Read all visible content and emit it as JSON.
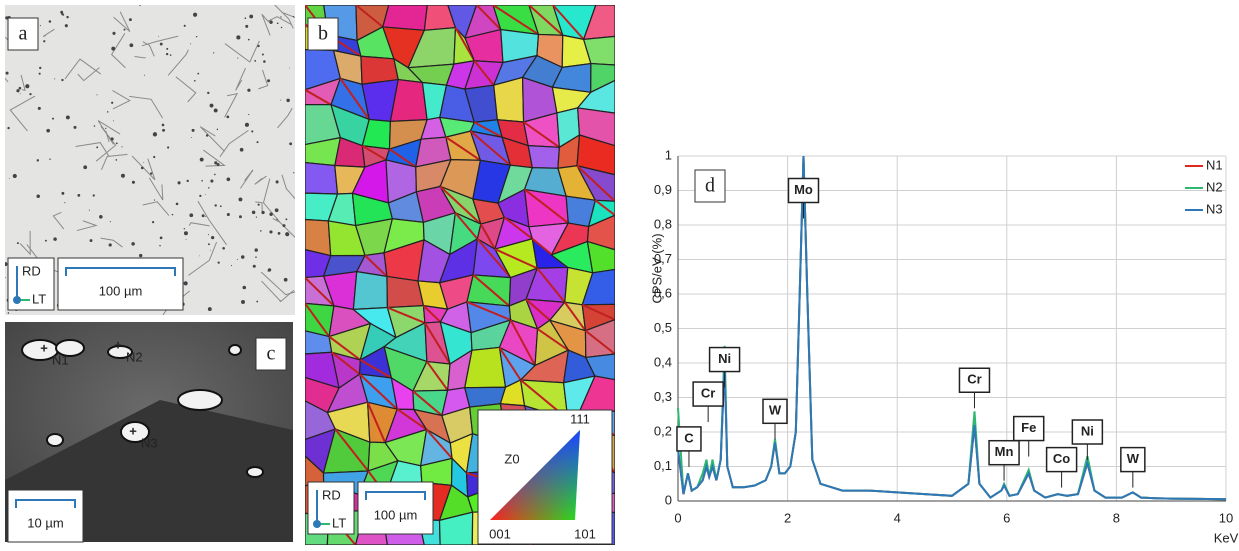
{
  "panels": {
    "a": {
      "label": "a",
      "scale": "100 µm",
      "axes": [
        "RD",
        "LT"
      ]
    },
    "b": {
      "label": "b",
      "scale": "100 µm",
      "axes": [
        "RD",
        "LT"
      ],
      "ipf": {
        "title": "Z0",
        "corners": [
          "001",
          "101",
          "111"
        ]
      }
    },
    "c": {
      "label": "c",
      "scale": "10 µm",
      "points": [
        "N1",
        "N2",
        "N3"
      ]
    },
    "d": {
      "label": "d"
    }
  },
  "chart_data": {
    "type": "line",
    "y_label": "CPS/eV (%)",
    "x_label": "KeV",
    "xlim": [
      0,
      10
    ],
    "xticks": [
      0,
      2,
      4,
      6,
      8,
      10
    ],
    "ylim": [
      0,
      1
    ],
    "yticks": [
      0,
      {
        "value": 0.1,
        "label": "0,1"
      },
      {
        "value": 0.2,
        "label": "0,2"
      },
      {
        "value": 0.3,
        "label": "0,3"
      },
      {
        "value": 0.4,
        "label": "0,4"
      },
      {
        "value": 0.5,
        "label": "0,5"
      },
      {
        "value": 0.6,
        "label": "0,6"
      },
      {
        "value": 0.7,
        "label": "0,7"
      },
      {
        "value": 0.8,
        "label": "0,8"
      },
      {
        "value": 0.9,
        "label": "0,9"
      },
      1
    ],
    "grid": true,
    "legend": "upper right",
    "x": [
      0,
      0.1,
      0.18,
      0.25,
      0.35,
      0.45,
      0.52,
      0.57,
      0.63,
      0.7,
      0.78,
      0.85,
      0.9,
      1.0,
      1.2,
      1.4,
      1.6,
      1.7,
      1.77,
      1.85,
      1.95,
      2.05,
      2.15,
      2.22,
      2.29,
      2.36,
      2.45,
      2.6,
      2.8,
      3.0,
      3.5,
      4.0,
      4.5,
      5.0,
      5.3,
      5.41,
      5.5,
      5.7,
      5.9,
      5.95,
      6.05,
      6.2,
      6.4,
      6.5,
      6.7,
      6.93,
      7.1,
      7.3,
      7.47,
      7.6,
      7.8,
      8.1,
      8.3,
      8.45,
      8.7,
      9.0,
      9.5,
      10
    ],
    "series": [
      {
        "name": "N1",
        "color": "#e0281e",
        "values": [
          0.15,
          0.02,
          0.08,
          0.03,
          0.04,
          0.06,
          0.1,
          0.07,
          0.1,
          0.06,
          0.12,
          0.4,
          0.1,
          0.04,
          0.04,
          0.045,
          0.06,
          0.1,
          0.17,
          0.08,
          0.08,
          0.1,
          0.2,
          0.6,
          1.0,
          0.6,
          0.12,
          0.05,
          0.04,
          0.03,
          0.03,
          0.025,
          0.02,
          0.015,
          0.05,
          0.22,
          0.05,
          0.01,
          0.03,
          0.045,
          0.015,
          0.02,
          0.08,
          0.03,
          0.01,
          0.02,
          0.015,
          0.02,
          0.11,
          0.03,
          0.01,
          0.01,
          0.025,
          0.01,
          0.008,
          0.007,
          0.006,
          0.005
        ]
      },
      {
        "name": "N2",
        "color": "#2eb872",
        "values": [
          0.27,
          0.02,
          0.08,
          0.03,
          0.04,
          0.08,
          0.12,
          0.07,
          0.12,
          0.06,
          0.12,
          0.45,
          0.1,
          0.04,
          0.04,
          0.045,
          0.06,
          0.1,
          0.18,
          0.08,
          0.08,
          0.1,
          0.2,
          0.6,
          1.0,
          0.6,
          0.12,
          0.05,
          0.04,
          0.03,
          0.03,
          0.025,
          0.02,
          0.015,
          0.05,
          0.26,
          0.05,
          0.01,
          0.03,
          0.05,
          0.015,
          0.02,
          0.09,
          0.03,
          0.01,
          0.02,
          0.015,
          0.02,
          0.13,
          0.03,
          0.01,
          0.01,
          0.025,
          0.01,
          0.008,
          0.007,
          0.006,
          0.005
        ]
      },
      {
        "name": "N3",
        "color": "#2e78b8",
        "values": [
          0.15,
          0.02,
          0.08,
          0.03,
          0.04,
          0.06,
          0.1,
          0.07,
          0.1,
          0.06,
          0.12,
          0.4,
          0.1,
          0.04,
          0.04,
          0.045,
          0.06,
          0.1,
          0.17,
          0.08,
          0.08,
          0.1,
          0.2,
          0.6,
          1.0,
          0.6,
          0.12,
          0.05,
          0.04,
          0.03,
          0.03,
          0.025,
          0.02,
          0.015,
          0.05,
          0.22,
          0.05,
          0.01,
          0.03,
          0.045,
          0.015,
          0.02,
          0.08,
          0.03,
          0.01,
          0.02,
          0.015,
          0.02,
          0.11,
          0.03,
          0.01,
          0.01,
          0.025,
          0.01,
          0.008,
          0.007,
          0.006,
          0.005
        ]
      }
    ],
    "annotations": [
      {
        "text": "C",
        "x": 0.2,
        "y": 0.18
      },
      {
        "text": "Cr",
        "x": 0.55,
        "y": 0.31
      },
      {
        "text": "Ni",
        "x": 0.85,
        "y": 0.41
      },
      {
        "text": "W",
        "x": 1.77,
        "y": 0.26
      },
      {
        "text": "Mo",
        "x": 2.29,
        "y": 0.9
      },
      {
        "text": "Cr",
        "x": 5.41,
        "y": 0.35
      },
      {
        "text": "Mn",
        "x": 5.95,
        "y": 0.14
      },
      {
        "text": "Fe",
        "x": 6.4,
        "y": 0.21
      },
      {
        "text": "Co",
        "x": 7.0,
        "y": 0.12
      },
      {
        "text": "Ni",
        "x": 7.47,
        "y": 0.2
      },
      {
        "text": "W",
        "x": 8.3,
        "y": 0.12
      }
    ]
  }
}
